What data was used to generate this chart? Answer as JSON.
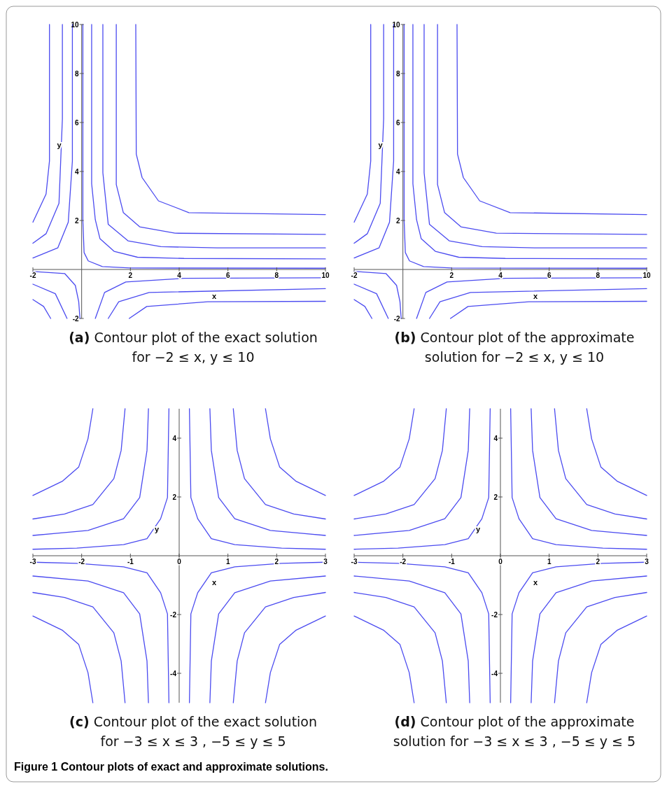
{
  "chart_data": [
    {
      "type": "line",
      "title": "(a) Contour plot of the exact solution for −2 ≤ x, y ≤ 10",
      "xlabel": "x",
      "ylabel": "y",
      "xlim": [
        -2,
        10
      ],
      "ylim": [
        -2,
        10
      ],
      "xticks": [
        -2,
        2,
        4,
        6,
        8,
        10
      ],
      "yticks": [
        -2,
        2,
        4,
        6,
        8,
        10
      ],
      "series": [
        {
          "color": "#4b4bf0",
          "x": [
            0.05,
            0.05,
            0.1,
            0.27,
            0.85,
            2,
            10
          ],
          "values": [
            10,
            2,
            0.69,
            0.35,
            0.12,
            0.06,
            0.05
          ]
        },
        {
          "color": "#4b4bf0",
          "x": [
            0.41,
            0.41,
            0.56,
            0.75,
            1.33,
            2.29,
            4.2,
            10
          ],
          "values": [
            10,
            3.5,
            2.03,
            1.26,
            0.74,
            0.5,
            0.45,
            0.43
          ]
        },
        {
          "color": "#4b4bf0",
          "x": [
            0.87,
            0.87,
            1.09,
            1.9,
            3.25,
            5.56,
            10
          ],
          "values": [
            10,
            3.95,
            1.84,
            1.17,
            0.93,
            0.88,
            0.88
          ]
        },
        {
          "color": "#4b4bf0",
          "x": [
            1.42,
            1.42,
            1.71,
            2.38,
            3.83,
            10
          ],
          "values": [
            10,
            3.47,
            2.32,
            1.74,
            1.48,
            1.43
          ]
        },
        {
          "color": "#4b4bf0",
          "x": [
            2.22,
            2.24,
            2.48,
            3.15,
            4.4,
            10
          ],
          "values": [
            10,
            4.71,
            3.75,
            2.8,
            2.32,
            2.24
          ]
        },
        {
          "color": "#4b4bf0",
          "x": [
            -1.32,
            -1.32,
            -1.46,
            -2
          ],
          "values": [
            10,
            4.43,
            3.08,
            1.93
          ]
        },
        {
          "color": "#4b4bf0",
          "x": [
            -0.79,
            -0.79,
            -0.93,
            -1.46,
            -2
          ],
          "values": [
            10,
            6.15,
            2.7,
            1.46,
            1.07
          ]
        },
        {
          "color": "#4b4bf0",
          "x": [
            -0.38,
            -0.38,
            -0.55,
            -0.98,
            -2
          ],
          "values": [
            10,
            4.43,
            1.93,
            0.88,
            0.47
          ]
        },
        {
          "color": "#4b4bf0",
          "x": [
            -2,
            -0.69,
            -0.26,
            -0.12,
            -0.07
          ],
          "values": [
            -0.08,
            -0.17,
            -0.65,
            -1.32,
            -2
          ]
        },
        {
          "color": "#4b4bf0",
          "x": [
            -2,
            -1.08,
            -0.6
          ],
          "values": [
            -0.6,
            -0.99,
            -2
          ]
        },
        {
          "color": "#4b4bf0",
          "x": [
            -2,
            -1.56,
            -1.27
          ],
          "values": [
            -1.23,
            -1.51,
            -2
          ]
        },
        {
          "color": "#4b4bf0",
          "x": [
            0.56,
            0.94,
            1.81,
            4.21,
            10
          ],
          "values": [
            -2,
            -0.94,
            -0.51,
            -0.36,
            -0.34
          ]
        },
        {
          "color": "#4b4bf0",
          "x": [
            1.09,
            1.52,
            2.77,
            10
          ],
          "values": [
            -2,
            -1.32,
            -0.94,
            -0.78
          ]
        },
        {
          "color": "#4b4bf0",
          "x": [
            1.95,
            2.67,
            5.17,
            10
          ],
          "values": [
            -2,
            -1.51,
            -1.32,
            -1.3
          ]
        }
      ]
    },
    {
      "type": "line",
      "title": "(b) Contour plot of the approximate solution for −2 ≤ x, y ≤ 10",
      "xlabel": "x",
      "ylabel": "y",
      "xlim": [
        -2,
        10
      ],
      "ylim": [
        -2,
        10
      ],
      "xticks": [
        -2,
        2,
        4,
        6,
        8,
        10
      ],
      "yticks": [
        -2,
        2,
        4,
        6,
        8,
        10
      ],
      "series": [
        {
          "color": "#4b4bf0",
          "x": [
            0.05,
            0.05,
            0.1,
            0.27,
            0.85,
            2,
            10
          ],
          "values": [
            10,
            2,
            0.69,
            0.35,
            0.12,
            0.06,
            0.05
          ]
        },
        {
          "color": "#4b4bf0",
          "x": [
            0.41,
            0.41,
            0.56,
            0.75,
            1.33,
            2.29,
            4.2,
            10
          ],
          "values": [
            10,
            3.5,
            2.03,
            1.26,
            0.74,
            0.5,
            0.45,
            0.43
          ]
        },
        {
          "color": "#4b4bf0",
          "x": [
            0.87,
            0.87,
            1.09,
            1.9,
            3.25,
            5.56,
            10
          ],
          "values": [
            10,
            3.95,
            1.84,
            1.17,
            0.93,
            0.88,
            0.88
          ]
        },
        {
          "color": "#4b4bf0",
          "x": [
            1.42,
            1.42,
            1.71,
            2.38,
            3.83,
            10
          ],
          "values": [
            10,
            3.47,
            2.32,
            1.74,
            1.48,
            1.43
          ]
        },
        {
          "color": "#4b4bf0",
          "x": [
            2.22,
            2.24,
            2.48,
            3.15,
            4.4,
            10
          ],
          "values": [
            10,
            4.71,
            3.75,
            2.8,
            2.32,
            2.24
          ]
        },
        {
          "color": "#4b4bf0",
          "x": [
            -1.32,
            -1.32,
            -1.46,
            -2
          ],
          "values": [
            10,
            4.43,
            3.08,
            1.93
          ]
        },
        {
          "color": "#4b4bf0",
          "x": [
            -0.79,
            -0.79,
            -0.93,
            -1.46,
            -2
          ],
          "values": [
            10,
            6.15,
            2.7,
            1.46,
            1.07
          ]
        },
        {
          "color": "#4b4bf0",
          "x": [
            -0.38,
            -0.38,
            -0.55,
            -0.98,
            -2
          ],
          "values": [
            10,
            4.43,
            1.93,
            0.88,
            0.47
          ]
        },
        {
          "color": "#4b4bf0",
          "x": [
            -2,
            -0.69,
            -0.26,
            -0.12,
            -0.07
          ],
          "values": [
            -0.08,
            -0.17,
            -0.65,
            -1.32,
            -2
          ]
        },
        {
          "color": "#4b4bf0",
          "x": [
            -2,
            -1.08,
            -0.6
          ],
          "values": [
            -0.6,
            -0.99,
            -2
          ]
        },
        {
          "color": "#4b4bf0",
          "x": [
            -2,
            -1.56,
            -1.27
          ],
          "values": [
            -1.23,
            -1.51,
            -2
          ]
        },
        {
          "color": "#4b4bf0",
          "x": [
            0.56,
            0.94,
            1.81,
            4.21,
            10
          ],
          "values": [
            -2,
            -0.94,
            -0.51,
            -0.36,
            -0.34
          ]
        },
        {
          "color": "#4b4bf0",
          "x": [
            1.09,
            1.52,
            2.77,
            10
          ],
          "values": [
            -2,
            -1.32,
            -0.94,
            -0.78
          ]
        },
        {
          "color": "#4b4bf0",
          "x": [
            1.95,
            2.67,
            5.17,
            10
          ],
          "values": [
            -2,
            -1.51,
            -1.32,
            -1.3
          ]
        }
      ]
    },
    {
      "type": "line",
      "title": "(c) Contour plot of the exact solution for −3 ≤ x ≤ 3 , −5 ≤ y ≤ 5",
      "xlabel": "x",
      "ylabel": "y",
      "xlim": [
        -3,
        3
      ],
      "ylim": [
        -5,
        5
      ],
      "xticks": [
        -3,
        -2,
        -1,
        0,
        1,
        2,
        3
      ],
      "yticks": [
        -4,
        -2,
        2,
        4
      ],
      "series": [
        {
          "color": "#4b4bf0",
          "x": [
            0.21,
            0.24,
            0.38,
            0.66,
            1.14,
            2.1,
            3
          ],
          "values": [
            5,
            1.98,
            1.26,
            0.58,
            0.38,
            0.26,
            0.22
          ]
        },
        {
          "color": "#4b4bf0",
          "x": [
            0.63,
            0.66,
            0.81,
            1.14,
            1.87,
            3
          ],
          "values": [
            5,
            3.58,
            1.98,
            1.26,
            0.86,
            0.69
          ]
        },
        {
          "color": "#4b4bf0",
          "x": [
            1.11,
            1.19,
            1.34,
            1.77,
            2.35,
            3
          ],
          "values": [
            5,
            3.58,
            2.62,
            1.74,
            1.42,
            1.25
          ]
        },
        {
          "color": "#4b4bf0",
          "x": [
            1.77,
            1.87,
            2.06,
            2.39,
            3
          ],
          "values": [
            5,
            3.98,
            3.02,
            2.54,
            2.05
          ]
        },
        {
          "color": "#4b4bf0",
          "x": [
            -0.21,
            -0.24,
            -0.38,
            -0.66,
            -1.14,
            -2.1,
            -3
          ],
          "values": [
            5,
            1.98,
            1.26,
            0.58,
            0.38,
            0.26,
            0.22
          ]
        },
        {
          "color": "#4b4bf0",
          "x": [
            -0.63,
            -0.66,
            -0.81,
            -1.14,
            -1.87,
            -3
          ],
          "values": [
            5,
            3.58,
            1.98,
            1.26,
            0.86,
            0.69
          ]
        },
        {
          "color": "#4b4bf0",
          "x": [
            -1.11,
            -1.19,
            -1.34,
            -1.77,
            -2.35,
            -3
          ],
          "values": [
            5,
            3.58,
            2.62,
            1.74,
            1.42,
            1.25
          ]
        },
        {
          "color": "#4b4bf0",
          "x": [
            -1.77,
            -1.87,
            -2.06,
            -2.39,
            -3
          ],
          "values": [
            5,
            3.98,
            3.02,
            2.54,
            2.05
          ]
        },
        {
          "color": "#4b4bf0",
          "x": [
            0.21,
            0.24,
            0.38,
            0.66,
            1.14,
            2.1,
            3
          ],
          "values": [
            -5,
            -1.98,
            -1.26,
            -0.58,
            -0.38,
            -0.26,
            -0.22
          ]
        },
        {
          "color": "#4b4bf0",
          "x": [
            0.63,
            0.66,
            0.81,
            1.14,
            1.87,
            3
          ],
          "values": [
            -5,
            -3.58,
            -1.98,
            -1.26,
            -0.86,
            -0.69
          ]
        },
        {
          "color": "#4b4bf0",
          "x": [
            1.11,
            1.19,
            1.34,
            1.77,
            2.35,
            3
          ],
          "values": [
            -5,
            -3.58,
            -2.62,
            -1.74,
            -1.42,
            -1.25
          ]
        },
        {
          "color": "#4b4bf0",
          "x": [
            1.77,
            1.87,
            2.06,
            2.39,
            3
          ],
          "values": [
            -5,
            -3.98,
            -3.02,
            -2.54,
            -2.05
          ]
        },
        {
          "color": "#4b4bf0",
          "x": [
            -0.21,
            -0.24,
            -0.38,
            -0.66,
            -1.14,
            -2.1,
            -3
          ],
          "values": [
            -5,
            -1.98,
            -1.26,
            -0.58,
            -0.38,
            -0.26,
            -0.22
          ]
        },
        {
          "color": "#4b4bf0",
          "x": [
            -0.63,
            -0.66,
            -0.81,
            -1.14,
            -1.87,
            -3
          ],
          "values": [
            -5,
            -3.58,
            -1.98,
            -1.26,
            -0.86,
            -0.69
          ]
        },
        {
          "color": "#4b4bf0",
          "x": [
            -1.11,
            -1.19,
            -1.34,
            -1.77,
            -2.35,
            -3
          ],
          "values": [
            -5,
            -3.58,
            -2.62,
            -1.74,
            -1.42,
            -1.25
          ]
        },
        {
          "color": "#4b4bf0",
          "x": [
            -1.77,
            -1.87,
            -2.06,
            -2.39,
            -3
          ],
          "values": [
            -5,
            -3.98,
            -3.02,
            -2.54,
            -2.05
          ]
        }
      ]
    },
    {
      "type": "line",
      "title": "(d) Contour plot of the approximate solution for −3 ≤ x ≤ 3 , −5 ≤ y ≤ 5",
      "xlabel": "x",
      "ylabel": "y",
      "xlim": [
        -3,
        3
      ],
      "ylim": [
        -5,
        5
      ],
      "xticks": [
        -3,
        -2,
        -1,
        0,
        1,
        2,
        3
      ],
      "yticks": [
        -4,
        -2,
        2,
        4
      ],
      "annotations": [
        "Figure 1  Contour plots of exact and approximate solutions."
      ],
      "series": [
        {
          "color": "#4b4bf0",
          "x": [
            0.21,
            0.24,
            0.38,
            0.66,
            1.14,
            2.1,
            3
          ],
          "values": [
            5,
            1.98,
            1.26,
            0.58,
            0.38,
            0.26,
            0.22
          ]
        },
        {
          "color": "#4b4bf0",
          "x": [
            0.63,
            0.66,
            0.81,
            1.14,
            1.87,
            3
          ],
          "values": [
            5,
            3.58,
            1.98,
            1.26,
            0.86,
            0.69
          ]
        },
        {
          "color": "#4b4bf0",
          "x": [
            1.11,
            1.19,
            1.34,
            1.77,
            2.35,
            3
          ],
          "values": [
            5,
            3.58,
            2.62,
            1.74,
            1.42,
            1.25
          ]
        },
        {
          "color": "#4b4bf0",
          "x": [
            1.77,
            1.87,
            2.06,
            2.39,
            3
          ],
          "values": [
            5,
            3.98,
            3.02,
            2.54,
            2.05
          ]
        },
        {
          "color": "#4b4bf0",
          "x": [
            -0.21,
            -0.24,
            -0.38,
            -0.66,
            -1.14,
            -2.1,
            -3
          ],
          "values": [
            5,
            1.98,
            1.26,
            0.58,
            0.38,
            0.26,
            0.22
          ]
        },
        {
          "color": "#4b4bf0",
          "x": [
            -0.63,
            -0.66,
            -0.81,
            -1.14,
            -1.87,
            -3
          ],
          "values": [
            5,
            3.58,
            1.98,
            1.26,
            0.86,
            0.69
          ]
        },
        {
          "color": "#4b4bf0",
          "x": [
            -1.11,
            -1.19,
            -1.34,
            -1.77,
            -2.35,
            -3
          ],
          "values": [
            5,
            3.58,
            2.62,
            1.74,
            1.42,
            1.25
          ]
        },
        {
          "color": "#4b4bf0",
          "x": [
            -1.77,
            -1.87,
            -2.06,
            -2.39,
            -3
          ],
          "values": [
            5,
            3.98,
            3.02,
            2.54,
            2.05
          ]
        },
        {
          "color": "#4b4bf0",
          "x": [
            0.21,
            0.24,
            0.38,
            0.66,
            1.14,
            2.1,
            3
          ],
          "values": [
            -5,
            -1.98,
            -1.26,
            -0.58,
            -0.38,
            -0.26,
            -0.22
          ]
        },
        {
          "color": "#4b4bf0",
          "x": [
            0.63,
            0.66,
            0.81,
            1.14,
            1.87,
            3
          ],
          "values": [
            -5,
            -3.58,
            -1.98,
            -1.26,
            -0.86,
            -0.69
          ]
        },
        {
          "color": "#4b4bf0",
          "x": [
            1.11,
            1.19,
            1.34,
            1.77,
            2.35,
            3
          ],
          "values": [
            -5,
            -3.58,
            -2.62,
            -1.74,
            -1.42,
            -1.25
          ]
        },
        {
          "color": "#4b4bf0",
          "x": [
            1.77,
            1.87,
            2.06,
            2.39,
            3
          ],
          "values": [
            -5,
            -3.98,
            -3.02,
            -2.54,
            -2.05
          ]
        },
        {
          "color": "#4b4bf0",
          "x": [
            -0.21,
            -0.24,
            -0.38,
            -0.66,
            -1.14,
            -2.1,
            -3
          ],
          "values": [
            -5,
            -1.98,
            -1.26,
            -0.58,
            -0.38,
            -0.26,
            -0.22
          ]
        },
        {
          "color": "#4b4bf0",
          "x": [
            -0.63,
            -0.66,
            -0.81,
            -1.14,
            -1.87,
            -3
          ],
          "values": [
            -5,
            -3.58,
            -1.98,
            -1.26,
            -0.86,
            -0.69
          ]
        },
        {
          "color": "#4b4bf0",
          "x": [
            -1.11,
            -1.19,
            -1.34,
            -1.77,
            -2.35,
            -3
          ],
          "values": [
            -5,
            -3.58,
            -2.62,
            -1.74,
            -1.42,
            -1.25
          ]
        },
        {
          "color": "#4b4bf0",
          "x": [
            -1.77,
            -1.87,
            -2.06,
            -2.39,
            -3
          ],
          "values": [
            -5,
            -3.98,
            -3.02,
            -2.54,
            -2.05
          ]
        }
      ]
    }
  ]
}
